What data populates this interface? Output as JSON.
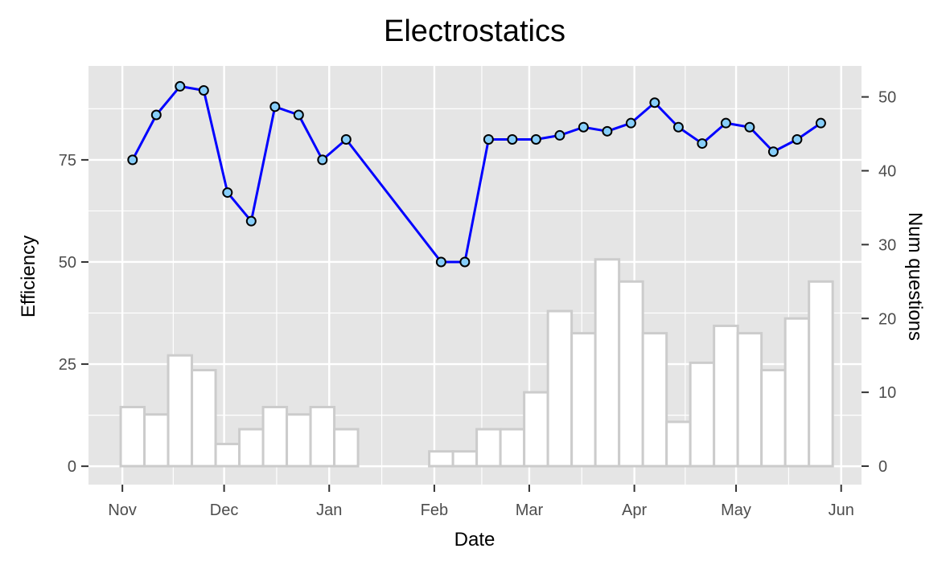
{
  "chart_data": {
    "type": "line",
    "title": "Electrostatics",
    "xlabel": "Date",
    "ylabel": "Efficiency",
    "y2label": "Num questions",
    "x_ticks": [
      "Nov",
      "Dec",
      "Jan",
      "Feb",
      "Mar",
      "Apr",
      "May",
      "Jun"
    ],
    "x_tick_dates": [
      "2022-11-01",
      "2022-12-01",
      "2023-01-01",
      "2023-02-01",
      "2023-03-01",
      "2023-04-01",
      "2023-05-01",
      "2023-06-01"
    ],
    "xlim": [
      "2022-10-22",
      "2023-06-07"
    ],
    "y_ticks": [
      0,
      25,
      50,
      75
    ],
    "ylim": [
      -4.5,
      98
    ],
    "y2_ticks": [
      0,
      10,
      20,
      30,
      40,
      50
    ],
    "y2lim": [
      -2.5,
      54.2
    ],
    "grid": true,
    "colors": {
      "panel_bg": "#e5e5e5",
      "grid": "#ffffff",
      "line": "#0000ff",
      "point_fill": "#87cefa",
      "point_stroke": "#000000",
      "bar_fill": "#ffffff",
      "bar_stroke": "#cccccc",
      "tick": "#333333"
    },
    "series": [
      {
        "axis": "left",
        "style": "line+points",
        "points": [
          {
            "x": "2022-11-04",
            "y": 75
          },
          {
            "x": "2022-11-11",
            "y": 86
          },
          {
            "x": "2022-11-18",
            "y": 93
          },
          {
            "x": "2022-11-25",
            "y": 92
          },
          {
            "x": "2022-12-02",
            "y": 67
          },
          {
            "x": "2022-12-09",
            "y": 60
          },
          {
            "x": "2022-12-16",
            "y": 88
          },
          {
            "x": "2022-12-23",
            "y": 86
          },
          {
            "x": "2022-12-30",
            "y": 75
          },
          {
            "x": "2023-01-06",
            "y": 80
          },
          {
            "x": "2023-02-03",
            "y": 50
          },
          {
            "x": "2023-02-10",
            "y": 50
          },
          {
            "x": "2023-02-17",
            "y": 80
          },
          {
            "x": "2023-02-24",
            "y": 80
          },
          {
            "x": "2023-03-03",
            "y": 80
          },
          {
            "x": "2023-03-10",
            "y": 81
          },
          {
            "x": "2023-03-17",
            "y": 83
          },
          {
            "x": "2023-03-24",
            "y": 82
          },
          {
            "x": "2023-03-31",
            "y": 84
          },
          {
            "x": "2023-04-07",
            "y": 89
          },
          {
            "x": "2023-04-14",
            "y": 83
          },
          {
            "x": "2023-04-21",
            "y": 79
          },
          {
            "x": "2023-04-28",
            "y": 84
          },
          {
            "x": "2023-05-05",
            "y": 83
          },
          {
            "x": "2023-05-12",
            "y": 77
          },
          {
            "x": "2023-05-19",
            "y": 80
          },
          {
            "x": "2023-05-26",
            "y": 84
          }
        ]
      },
      {
        "axis": "right",
        "style": "bar",
        "bar_width_days": 7,
        "points": [
          {
            "x": "2022-11-04",
            "y": 8
          },
          {
            "x": "2022-11-11",
            "y": 7
          },
          {
            "x": "2022-11-18",
            "y": 15
          },
          {
            "x": "2022-11-25",
            "y": 13
          },
          {
            "x": "2022-12-02",
            "y": 3
          },
          {
            "x": "2022-12-09",
            "y": 5
          },
          {
            "x": "2022-12-16",
            "y": 8
          },
          {
            "x": "2022-12-23",
            "y": 7
          },
          {
            "x": "2022-12-30",
            "y": 8
          },
          {
            "x": "2023-01-06",
            "y": 5
          },
          {
            "x": "2023-02-03",
            "y": 2
          },
          {
            "x": "2023-02-10",
            "y": 2
          },
          {
            "x": "2023-02-17",
            "y": 5
          },
          {
            "x": "2023-02-24",
            "y": 5
          },
          {
            "x": "2023-03-03",
            "y": 10
          },
          {
            "x": "2023-03-10",
            "y": 21
          },
          {
            "x": "2023-03-17",
            "y": 18
          },
          {
            "x": "2023-03-24",
            "y": 28
          },
          {
            "x": "2023-03-31",
            "y": 25
          },
          {
            "x": "2023-04-07",
            "y": 18
          },
          {
            "x": "2023-04-14",
            "y": 6
          },
          {
            "x": "2023-04-21",
            "y": 14
          },
          {
            "x": "2023-04-28",
            "y": 19
          },
          {
            "x": "2023-05-05",
            "y": 18
          },
          {
            "x": "2023-05-12",
            "y": 13
          },
          {
            "x": "2023-05-19",
            "y": 20
          },
          {
            "x": "2023-05-26",
            "y": 25
          }
        ]
      }
    ]
  }
}
